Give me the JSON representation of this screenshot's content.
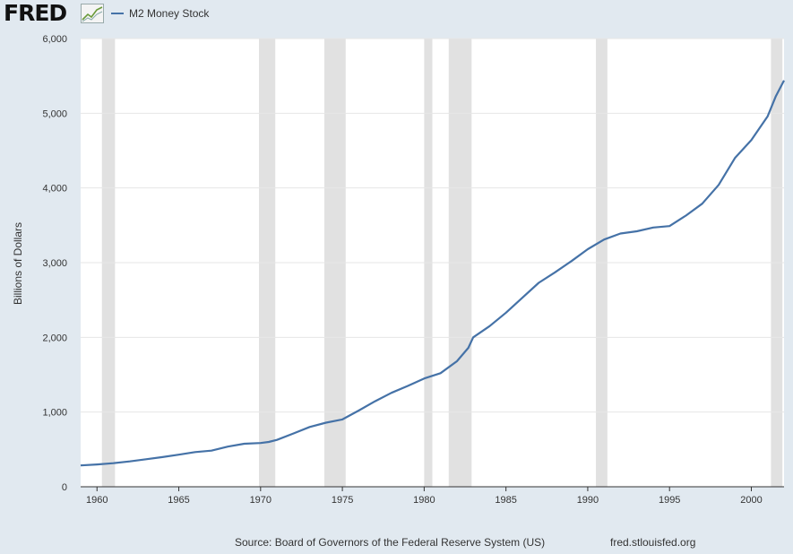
{
  "header": {
    "logo_text": "FRED",
    "logo_icon": "line-graph-icon",
    "legend_label": "M2 Money Stock"
  },
  "footer": {
    "source": "Source: Board of Governors of the Federal Reserve System (US)",
    "url": "fred.stlouisfed.org"
  },
  "colors": {
    "series": "#4572a7",
    "recession": "#e1e1e1",
    "background": "#e1e9f0",
    "plot": "#ffffff",
    "grid": "#e6e6e6"
  },
  "chart_data": {
    "type": "line",
    "title": "",
    "xlabel": "",
    "ylabel": "Billions of Dollars",
    "xlim": [
      1959.0,
      2002.0
    ],
    "ylim": [
      0,
      6000
    ],
    "xticks": [
      1960,
      1965,
      1970,
      1975,
      1980,
      1985,
      1990,
      1995,
      2000
    ],
    "xtick_labels": [
      "1960",
      "1965",
      "1970",
      "1975",
      "1980",
      "1985",
      "1990",
      "1995",
      "2000"
    ],
    "yticks": [
      0,
      1000,
      2000,
      3000,
      4000,
      5000,
      6000
    ],
    "ytick_labels": [
      "0",
      "1,000",
      "2,000",
      "3,000",
      "4,000",
      "5,000",
      "6,000"
    ],
    "grid": "horizontal",
    "legend_position": "top-left",
    "recessions": [
      [
        1960.3,
        1961.1
      ],
      [
        1969.9,
        1970.9
      ],
      [
        1973.9,
        1975.2
      ],
      [
        1980.0,
        1980.5
      ],
      [
        1981.5,
        1982.9
      ],
      [
        1990.5,
        1991.2
      ],
      [
        2001.2,
        2001.9
      ]
    ],
    "series": [
      {
        "name": "M2 Money Stock",
        "x": [
          1959.0,
          1960.0,
          1961.0,
          1962.0,
          1963.0,
          1964.0,
          1965.0,
          1966.0,
          1967.0,
          1968.0,
          1969.0,
          1970.0,
          1970.5,
          1971.0,
          1972.0,
          1973.0,
          1974.0,
          1975.0,
          1976.0,
          1977.0,
          1978.0,
          1979.0,
          1980.0,
          1981.0,
          1982.0,
          1982.7,
          1983.0,
          1984.0,
          1985.0,
          1986.0,
          1987.0,
          1988.0,
          1989.0,
          1990.0,
          1991.0,
          1992.0,
          1993.0,
          1994.0,
          1995.0,
          1996.0,
          1997.0,
          1998.0,
          1999.0,
          2000.0,
          2001.0,
          2001.5,
          2002.0
        ],
        "values": [
          286,
          299,
          316,
          340,
          368,
          397,
          430,
          465,
          484,
          538,
          576,
          586,
          600,
          628,
          713,
          800,
          858,
          901,
          1020,
          1145,
          1258,
          1350,
          1450,
          1520,
          1680,
          1860,
          2000,
          2150,
          2330,
          2530,
          2730,
          2870,
          3020,
          3180,
          3310,
          3390,
          3420,
          3470,
          3490,
          3630,
          3790,
          4040,
          4400,
          4640,
          4960,
          5230,
          5440
        ]
      }
    ]
  }
}
